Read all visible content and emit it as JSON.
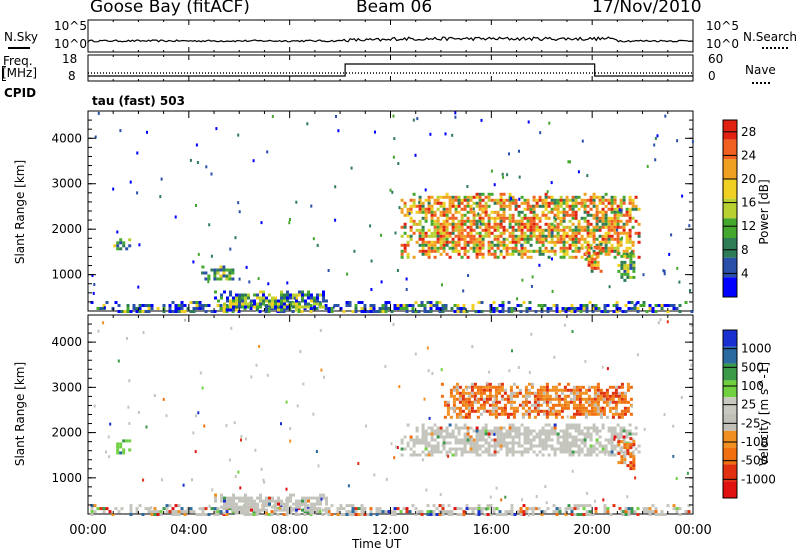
{
  "header": {
    "title": "Goose Bay (fitACF)",
    "beam": "Beam 06",
    "date": "17/Nov/2010"
  },
  "top_panels": {
    "nsky_label": "N.Sky",
    "nsearch_label": "N.Search",
    "noise_tick_top": "10^5",
    "noise_tick_bottom": "10^0",
    "freq_label": "Freq.",
    "freq_unit": "[MHz]",
    "freq_tick_top": "18",
    "freq_tick_bottom": "8",
    "nave_label": "Nave",
    "nave_tick_top": "60",
    "nave_tick_bottom": "0",
    "cpid_label": "CPID",
    "cpid_text": "tau (fast) 503"
  },
  "colors": {
    "power": [
      "#0000ff",
      "#2a4fa8",
      "#2e7c55",
      "#45a82e",
      "#b8d030",
      "#f0d020",
      "#f0a020",
      "#f06020",
      "#e02010"
    ],
    "velocity": [
      "#1a2fd0",
      "#2a6aa0",
      "#3a9a4a",
      "#70d040",
      "#c8c8c0",
      "#c0c0b8",
      "#f09020",
      "#f07010",
      "#e03010",
      "#e01010"
    ],
    "gray": "#c4c4bc"
  },
  "chart_data": [
    {
      "type": "heatmap",
      "panel": "power",
      "ylabel": "Slant Range [km]",
      "yticks": [
        "1000",
        "2000",
        "3000",
        "4000"
      ],
      "ylim": [
        200,
        4600
      ],
      "xlim": [
        0,
        24
      ],
      "xticks": [
        "00:00",
        "04:00",
        "08:00",
        "12:00",
        "16:00",
        "20:00",
        "00:00"
      ],
      "colorbar": {
        "label": "Power [dB]",
        "ticks": [
          "4",
          "8",
          "12",
          "16",
          "20",
          "24",
          "28"
        ],
        "range": [
          0,
          30
        ]
      },
      "regions": [
        {
          "t": [
            0.1,
            24
          ],
          "r": [
            200,
            420
          ],
          "level": "low"
        },
        {
          "t": [
            1.0,
            1.6
          ],
          "r": [
            1550,
            1800
          ],
          "level": "mid"
        },
        {
          "t": [
            4.5,
            5.8
          ],
          "r": [
            900,
            1200
          ],
          "level": "mid"
        },
        {
          "t": [
            5.0,
            9.5
          ],
          "r": [
            250,
            650
          ],
          "level": "low-mid"
        },
        {
          "t": [
            12.4,
            21.9
          ],
          "r": [
            1400,
            2800
          ],
          "level": "high"
        },
        {
          "t": [
            19.7,
            20.3
          ],
          "r": [
            1100,
            1700
          ],
          "level": "high"
        },
        {
          "t": [
            21.0,
            21.7
          ],
          "r": [
            900,
            1500
          ],
          "level": "mid"
        }
      ]
    },
    {
      "type": "heatmap",
      "panel": "velocity",
      "ylabel": "Slant Range [km]",
      "yticks": [
        "1000",
        "2000",
        "3000",
        "4000"
      ],
      "ylim": [
        200,
        4600
      ],
      "xlim": [
        0,
        24
      ],
      "xlabel": "Time UT",
      "xticks": [
        "00:00",
        "04:00",
        "08:00",
        "12:00",
        "16:00",
        "20:00",
        "00:00"
      ],
      "colorbar": {
        "label": "Velocity [m s^-1]",
        "ticks": [
          "1000",
          "500",
          "100",
          "25",
          "-25",
          "-100",
          "-500",
          "-1000"
        ]
      },
      "regions": [
        {
          "t": [
            0.1,
            24
          ],
          "r": [
            200,
            420
          ],
          "level": "mixed"
        },
        {
          "t": [
            1.0,
            1.6
          ],
          "r": [
            1550,
            1850
          ],
          "level": "positive"
        },
        {
          "t": [
            5.0,
            9.5
          ],
          "r": [
            250,
            650
          ],
          "level": "ground-scatter"
        },
        {
          "t": [
            12.4,
            21.9
          ],
          "r": [
            1500,
            2200
          ],
          "level": "ground-scatter"
        },
        {
          "t": [
            14.0,
            21.5
          ],
          "r": [
            2350,
            3100
          ],
          "level": "negative"
        },
        {
          "t": [
            21.0,
            21.6
          ],
          "r": [
            1200,
            1900
          ],
          "level": "negative"
        }
      ]
    }
  ]
}
